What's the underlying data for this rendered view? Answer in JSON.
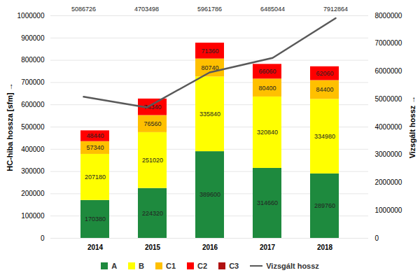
{
  "chart_data": {
    "type": "bar",
    "stacked": true,
    "data_labels": true,
    "grid": true,
    "legend": "bottom",
    "categories": [
      "2014",
      "2015",
      "2016",
      "2017",
      "2018"
    ],
    "y_label": "HC-hiba hossza [sfm]",
    "y2_label": "Vizsgált hossz",
    "ylim": [
      0,
      1000000
    ],
    "yticks": [
      0,
      100000,
      200000,
      300000,
      400000,
      500000,
      600000,
      700000,
      800000,
      900000,
      1000000
    ],
    "y2lim": [
      0,
      8000000
    ],
    "y2ticks": [
      0,
      1000000,
      2000000,
      3000000,
      4000000,
      5000000,
      6000000,
      7000000,
      8000000
    ],
    "series": [
      {
        "name": "A",
        "color": "#1e8a3e",
        "values": [
          170380,
          224320,
          389600,
          314660,
          289760
        ]
      },
      {
        "name": "B",
        "color": "#ffff00",
        "values": [
          207180,
          251020,
          335840,
          320840,
          334980
        ]
      },
      {
        "name": "C1",
        "color": "#ffc000",
        "values": [
          57340,
          76560,
          80740,
          80400,
          84400
        ]
      },
      {
        "name": "C2",
        "color": "#ff0000",
        "values": [
          48440,
          74340,
          71360,
          66060,
          62060
        ]
      },
      {
        "name": "C3",
        "color": "#b01010",
        "data_labels": false,
        "values": [
          0,
          0,
          0,
          0,
          0
        ]
      },
      {
        "name": "Vizsgált hossz",
        "type": "line",
        "axis": "y2",
        "color": "#595959",
        "values": [
          5086726,
          4703498,
          5961786,
          6485044,
          7912864
        ]
      }
    ]
  }
}
